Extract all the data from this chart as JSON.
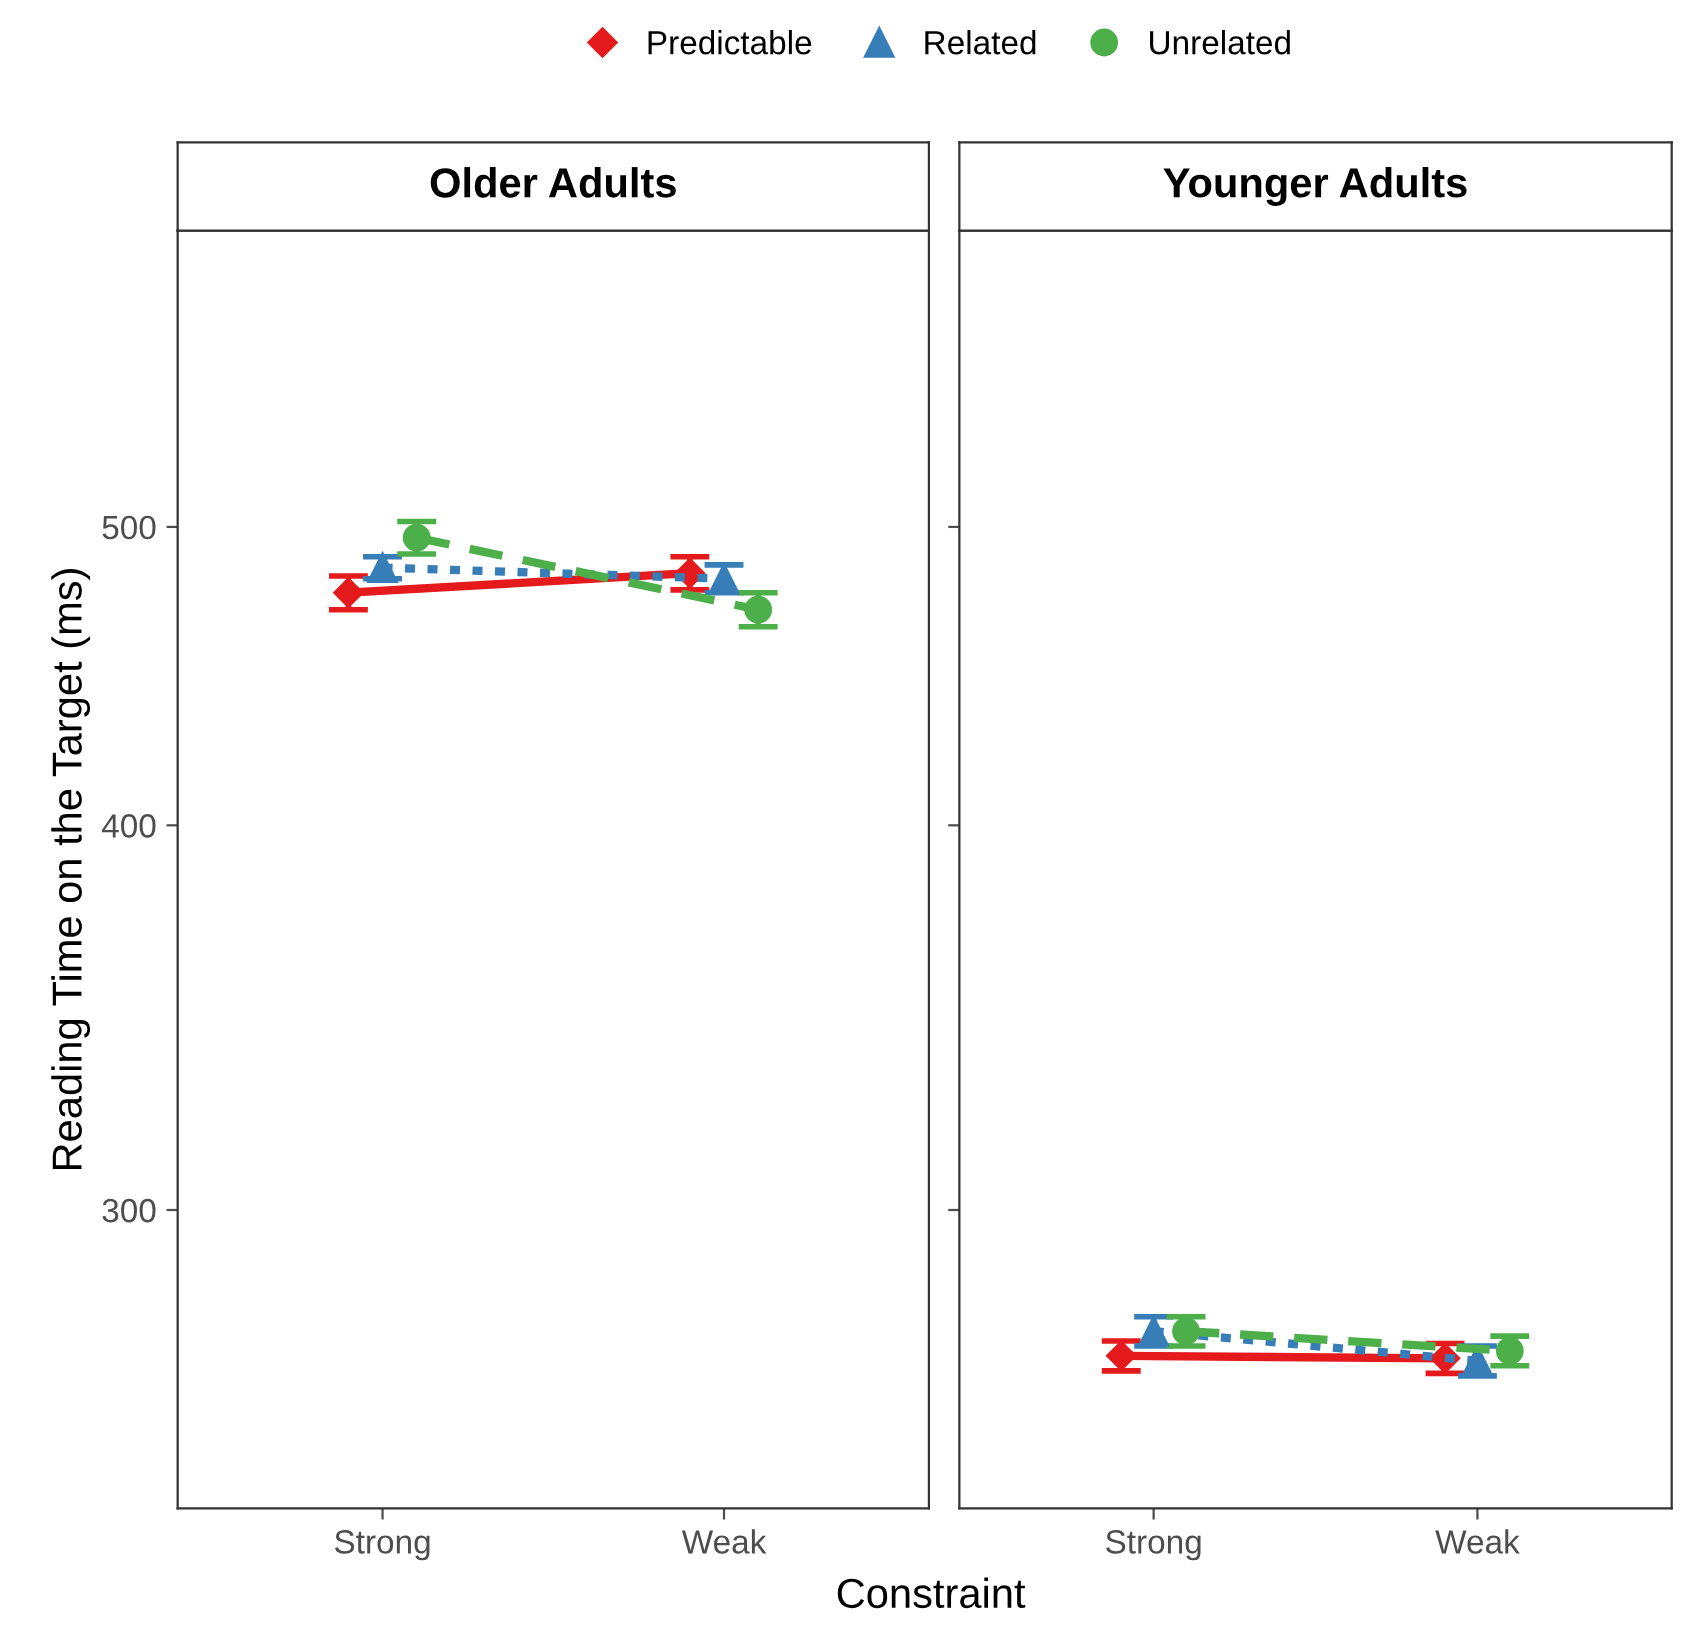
{
  "chart_data": [
    {
      "type": "line",
      "title": "Older Adults",
      "ylabel": "Reading Time on the Target (ms)",
      "xlabel": "Constraint",
      "categories": [
        "Strong",
        "Weak"
      ],
      "log": true,
      "ylim": [
        240,
        624
      ],
      "yticks": [
        300,
        400,
        500
      ],
      "grid": false,
      "legend": "top",
      "series": [
        {
          "name": "Predictable",
          "color": "#e41a1c",
          "values": [
            476,
            483
          ],
          "errors": [
            6,
            6
          ],
          "marker": "diamond",
          "line_style": "solid"
        },
        {
          "name": "Related",
          "color": "#377eb8",
          "values": [
            485,
            481
          ],
          "errors": [
            4,
            5
          ],
          "marker": "triangle",
          "line_style": "dotted"
        },
        {
          "name": "Unrelated",
          "color": "#4daf4a",
          "values": [
            496,
            470
          ],
          "errors": [
            6,
            6
          ],
          "marker": "circle",
          "line_style": "dashed"
        }
      ]
    },
    {
      "type": "line",
      "title": "Younger Adults",
      "categories": [
        "Strong",
        "Weak"
      ],
      "log": true,
      "ylim": [
        240,
        624
      ],
      "yticks": [
        300,
        400,
        500
      ],
      "grid": false,
      "tick_labels": "x",
      "series": [
        {
          "name": "Predictable",
          "color": "#e41a1c",
          "values": [
            269,
            268.5
          ],
          "errors": [
            3,
            3
          ],
          "marker": "diamond",
          "line_style": "solid"
        },
        {
          "name": "Related",
          "color": "#377eb8",
          "values": [
            274,
            268
          ],
          "errors": [
            3,
            3
          ],
          "marker": "triangle",
          "line_style": "dotted"
        },
        {
          "name": "Unrelated",
          "color": "#4daf4a",
          "values": [
            274,
            270
          ],
          "errors": [
            3,
            3
          ],
          "marker": "circle",
          "line_style": "dashed"
        }
      ]
    }
  ]
}
